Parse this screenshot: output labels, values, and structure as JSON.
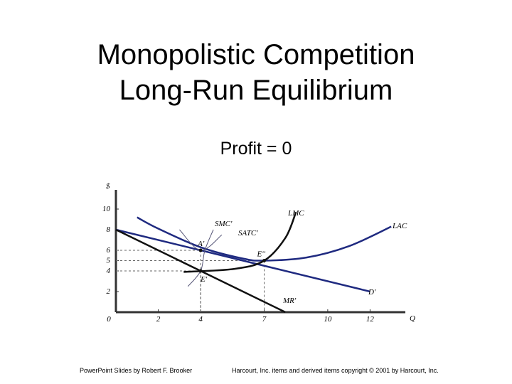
{
  "title_lines": [
    "Monopolistic Competition",
    "Long-Run Equilibrium"
  ],
  "subtitle": "Profit = 0",
  "footer": {
    "left": "PowerPoint Slides by Robert F. Brooker",
    "right": "Harcourt, Inc. items and derived items copyright © 2001 by Harcourt, Inc."
  },
  "chart_data": {
    "type": "line",
    "x_label": "Q",
    "y_label": "$",
    "xlim": [
      0,
      14
    ],
    "ylim": [
      0,
      12
    ],
    "xticks": [
      0,
      2,
      4,
      7,
      10,
      12
    ],
    "yticks": [
      2,
      4,
      5,
      6,
      8,
      10
    ],
    "series": [
      {
        "name": "D'",
        "color": "#1f2a80",
        "x": [
          0,
          12
        ],
        "values": [
          8,
          2
        ]
      },
      {
        "name": "MR'",
        "color": "#111111",
        "x": [
          0,
          8
        ],
        "values": [
          8,
          0
        ]
      },
      {
        "name": "LAC",
        "color": "#1f2a80",
        "x": [
          1,
          2,
          4,
          6,
          7,
          9,
          11,
          13
        ],
        "values": [
          9.2,
          8.1,
          6.3,
          5.2,
          5,
          5.3,
          6.4,
          8.3
        ]
      },
      {
        "name": "LMC",
        "color": "#111111",
        "x": [
          3.2,
          5.6,
          7,
          8,
          8.5
        ],
        "values": [
          3.9,
          4.2,
          5,
          7.2,
          9.7
        ]
      },
      {
        "name": "SMC'",
        "color": "#555577",
        "x": [
          3.4,
          4,
          4.2,
          4.6
        ],
        "values": [
          2.5,
          4,
          6,
          8
        ]
      },
      {
        "name": "SATC'",
        "color": "#555577",
        "x": [
          3,
          4,
          5
        ],
        "values": [
          8,
          6,
          7.5
        ]
      }
    ],
    "points": [
      {
        "label": "A'",
        "x": 4,
        "y": 6
      },
      {
        "label": "E'",
        "x": 4,
        "y": 4
      },
      {
        "label": "E''",
        "x": 7,
        "y": 5
      }
    ]
  }
}
